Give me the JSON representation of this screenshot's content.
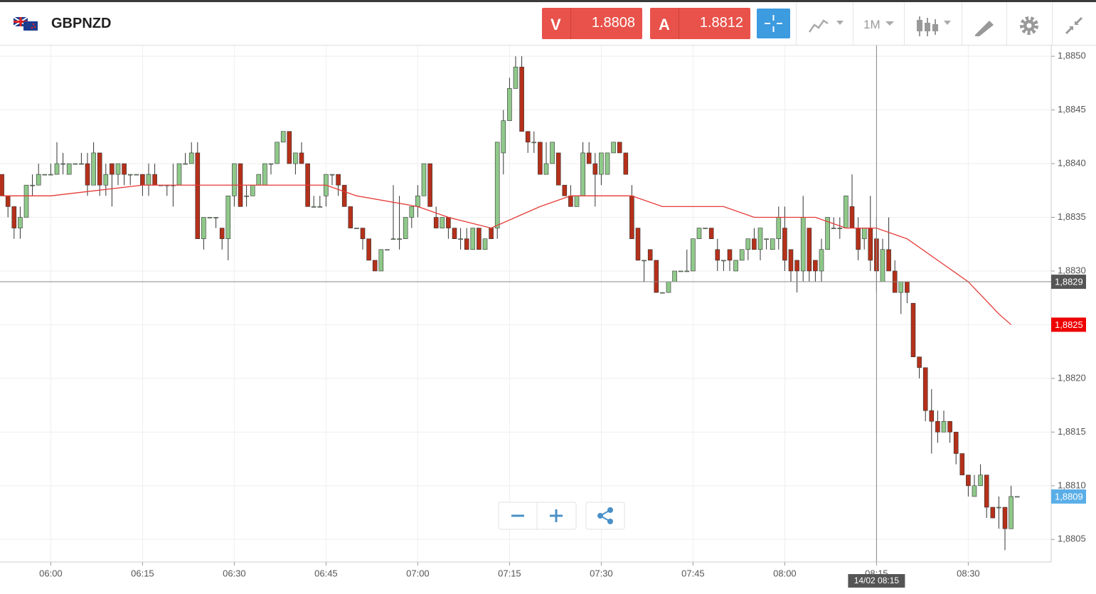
{
  "header": {
    "symbol": "GBPNZD",
    "sell_label": "V",
    "sell_price": "1.8808",
    "buy_label": "A",
    "buy_price": "1.8812",
    "timeframe": "1M"
  },
  "chart_data": {
    "type": "candlestick",
    "x": [
      "05:52",
      "05:53",
      "05:54",
      "05:55",
      "05:56",
      "05:57",
      "05:58",
      "05:59",
      "06:00",
      "06:01",
      "06:02",
      "06:03",
      "06:04",
      "06:05",
      "06:06",
      "06:07",
      "06:08",
      "06:09",
      "06:10",
      "06:11",
      "06:12",
      "06:13",
      "06:14",
      "06:15",
      "06:16",
      "06:17",
      "06:18",
      "06:19",
      "06:20",
      "06:21",
      "06:22",
      "06:23",
      "06:24",
      "06:25",
      "06:26",
      "06:27",
      "06:28",
      "06:29",
      "06:30",
      "06:31",
      "06:32",
      "06:33",
      "06:34",
      "06:35",
      "06:36",
      "06:37",
      "06:38",
      "06:39",
      "06:40",
      "06:41",
      "06:42",
      "06:43",
      "06:44",
      "06:45",
      "06:46",
      "06:47",
      "06:48",
      "06:49",
      "06:50",
      "06:51",
      "06:52",
      "06:53",
      "06:54",
      "06:55",
      "06:56",
      "06:57",
      "06:58",
      "06:59",
      "07:00",
      "07:01",
      "07:02",
      "07:03",
      "07:04",
      "07:05",
      "07:06",
      "07:07",
      "07:08",
      "07:09",
      "07:10",
      "07:11",
      "07:12",
      "07:13",
      "07:14",
      "07:15",
      "07:16",
      "07:17",
      "07:18",
      "07:19",
      "07:20",
      "07:21",
      "07:22",
      "07:23",
      "07:24",
      "07:25",
      "07:26",
      "07:27",
      "07:28",
      "07:29",
      "07:30",
      "07:31",
      "07:32",
      "07:33",
      "07:34",
      "07:35",
      "07:36",
      "07:37",
      "07:38",
      "07:39",
      "07:40",
      "07:41",
      "07:42",
      "07:43",
      "07:44",
      "07:45",
      "07:46",
      "07:47",
      "07:48",
      "07:49",
      "07:50",
      "07:51",
      "07:52",
      "07:53",
      "07:54",
      "07:55",
      "07:56",
      "07:57",
      "07:58",
      "07:59",
      "08:00",
      "08:01",
      "08:02",
      "08:03",
      "08:04",
      "08:05",
      "08:06",
      "08:07",
      "08:08",
      "08:09",
      "08:10",
      "08:11",
      "08:12",
      "08:13",
      "08:14",
      "08:15",
      "08:16",
      "08:17",
      "08:18",
      "08:19",
      "08:20",
      "08:21",
      "08:22",
      "08:23",
      "08:24",
      "08:25",
      "08:26",
      "08:27",
      "08:28",
      "08:29",
      "08:30",
      "08:31",
      "08:32",
      "08:33",
      "08:34",
      "08:35",
      "08:36",
      "08:37",
      "08:38"
    ],
    "ohlc": [
      [
        1.8839,
        1.8839,
        1.8837,
        1.8837
      ],
      [
        1.8837,
        1.8837,
        1.8835,
        1.8836
      ],
      [
        1.8836,
        1.8836,
        1.8833,
        1.8834
      ],
      [
        1.8834,
        1.8836,
        1.8833,
        1.8835
      ],
      [
        1.8835,
        1.8838,
        1.8835,
        1.8838
      ],
      [
        1.8838,
        1.8839,
        1.8837,
        1.8838
      ],
      [
        1.8838,
        1.884,
        1.8838,
        1.8839
      ],
      [
        1.8839,
        1.8839,
        1.8839,
        1.8839
      ],
      [
        1.8839,
        1.884,
        1.8839,
        1.8839
      ],
      [
        1.8839,
        1.8842,
        1.8839,
        1.884
      ],
      [
        1.884,
        1.8841,
        1.8839,
        1.884
      ],
      [
        1.8839,
        1.884,
        1.8839,
        1.884
      ],
      [
        1.884,
        1.884,
        1.884,
        1.884
      ],
      [
        1.884,
        1.8841,
        1.884,
        1.884
      ],
      [
        1.884,
        1.8841,
        1.8837,
        1.8838
      ],
      [
        1.8838,
        1.8842,
        1.8838,
        1.8841
      ],
      [
        1.8841,
        1.8841,
        1.8837,
        1.8838
      ],
      [
        1.8838,
        1.884,
        1.8837,
        1.8839
      ],
      [
        1.884,
        1.884,
        1.8836,
        1.8839
      ],
      [
        1.8839,
        1.884,
        1.8838,
        1.884
      ],
      [
        1.884,
        1.884,
        1.8838,
        1.8839
      ],
      [
        1.8839,
        1.8839,
        1.8838,
        1.8839
      ],
      [
        1.8839,
        1.8839,
        1.8839,
        1.8839
      ],
      [
        1.8839,
        1.8839,
        1.8837,
        1.8838
      ],
      [
        1.8838,
        1.884,
        1.8837,
        1.8839
      ],
      [
        1.8839,
        1.884,
        1.8838,
        1.8838
      ],
      [
        1.8838,
        1.8838,
        1.8838,
        1.8838
      ],
      [
        1.8838,
        1.8838,
        1.8837,
        1.8838
      ],
      [
        1.8838,
        1.884,
        1.8836,
        1.8838
      ],
      [
        1.8838,
        1.884,
        1.8838,
        1.884
      ],
      [
        1.884,
        1.8841,
        1.884,
        1.884
      ],
      [
        1.884,
        1.8842,
        1.884,
        1.8841
      ],
      [
        1.8841,
        1.8842,
        1.8833,
        1.8833
      ],
      [
        1.8833,
        1.8835,
        1.8832,
        1.8835
      ],
      [
        1.8835,
        1.8835,
        1.8835,
        1.8835
      ],
      [
        1.8835,
        1.8835,
        1.8834,
        1.8835
      ],
      [
        1.8834,
        1.8834,
        1.8832,
        1.8833
      ],
      [
        1.8833,
        1.8837,
        1.8831,
        1.8837
      ],
      [
        1.8837,
        1.884,
        1.8836,
        1.884
      ],
      [
        1.884,
        1.884,
        1.8836,
        1.8836
      ],
      [
        1.8837,
        1.8838,
        1.8836,
        1.8837
      ],
      [
        1.8837,
        1.8838,
        1.8837,
        1.8838
      ],
      [
        1.8838,
        1.8839,
        1.8838,
        1.8839
      ],
      [
        1.8838,
        1.884,
        1.8838,
        1.884
      ],
      [
        1.884,
        1.884,
        1.8839,
        1.884
      ],
      [
        1.884,
        1.8842,
        1.884,
        1.8842
      ],
      [
        1.8842,
        1.8843,
        1.8842,
        1.8843
      ],
      [
        1.8843,
        1.8843,
        1.884,
        1.884
      ],
      [
        1.884,
        1.8841,
        1.8839,
        1.8841
      ],
      [
        1.8841,
        1.8842,
        1.884,
        1.884
      ],
      [
        1.884,
        1.884,
        1.8836,
        1.8836
      ],
      [
        1.8836,
        1.8837,
        1.8836,
        1.8836
      ],
      [
        1.8836,
        1.8837,
        1.8836,
        1.8836
      ],
      [
        1.8837,
        1.8839,
        1.8836,
        1.8839
      ],
      [
        1.8839,
        1.8839,
        1.8838,
        1.8839
      ],
      [
        1.8839,
        1.8839,
        1.8837,
        1.8838
      ],
      [
        1.8838,
        1.8838,
        1.8836,
        1.8836
      ],
      [
        1.8836,
        1.8836,
        1.8834,
        1.8834
      ],
      [
        1.8834,
        1.8834,
        1.8834,
        1.8834
      ],
      [
        1.8834,
        1.8834,
        1.8832,
        1.8833
      ],
      [
        1.8833,
        1.8833,
        1.8831,
        1.8831
      ],
      [
        1.8831,
        1.8831,
        1.883,
        1.883
      ],
      [
        1.883,
        1.8832,
        1.883,
        1.8832
      ],
      [
        1.8832,
        1.8832,
        1.8832,
        1.8832
      ],
      [
        1.8833,
        1.8838,
        1.8833,
        1.8833
      ],
      [
        1.8833,
        1.8837,
        1.8832,
        1.8833
      ],
      [
        1.8833,
        1.8835,
        1.8833,
        1.8835
      ],
      [
        1.8835,
        1.8836,
        1.8834,
        1.8836
      ],
      [
        1.8836,
        1.8838,
        1.8835,
        1.8837
      ],
      [
        1.8837,
        1.884,
        1.8837,
        1.884
      ],
      [
        1.884,
        1.884,
        1.8836,
        1.8836
      ],
      [
        1.8835,
        1.8836,
        1.8834,
        1.8834
      ],
      [
        1.8834,
        1.8835,
        1.8834,
        1.8835
      ],
      [
        1.8835,
        1.8835,
        1.8833,
        1.8834
      ],
      [
        1.8834,
        1.8834,
        1.8833,
        1.8833
      ],
      [
        1.8833,
        1.8834,
        1.8832,
        1.8833
      ],
      [
        1.8833,
        1.8834,
        1.8832,
        1.8832
      ],
      [
        1.8832,
        1.8834,
        1.8832,
        1.8834
      ],
      [
        1.8834,
        1.8834,
        1.8832,
        1.8832
      ],
      [
        1.8832,
        1.8833,
        1.8832,
        1.8833
      ],
      [
        1.8834,
        1.8834,
        1.8833,
        1.8833
      ],
      [
        1.8834,
        1.8842,
        1.8833,
        1.8842
      ],
      [
        1.8841,
        1.8845,
        1.8839,
        1.8844
      ],
      [
        1.8844,
        1.8848,
        1.8844,
        1.8847
      ],
      [
        1.8847,
        1.885,
        1.8847,
        1.8849
      ],
      [
        1.8849,
        1.885,
        1.8843,
        1.8843
      ],
      [
        1.8843,
        1.8843,
        1.8841,
        1.8842
      ],
      [
        1.8842,
        1.8843,
        1.8841,
        1.8842
      ],
      [
        1.8842,
        1.8842,
        1.8839,
        1.8839
      ],
      [
        1.8839,
        1.8842,
        1.8839,
        1.884
      ],
      [
        1.884,
        1.8842,
        1.884,
        1.8842
      ],
      [
        1.8841,
        1.8841,
        1.8838,
        1.8838
      ],
      [
        1.8838,
        1.8838,
        1.8837,
        1.8837
      ],
      [
        1.8837,
        1.8838,
        1.8836,
        1.8836
      ],
      [
        1.8836,
        1.8837,
        1.8836,
        1.8837
      ],
      [
        1.8837,
        1.8842,
        1.8837,
        1.8841
      ],
      [
        1.8841,
        1.8842,
        1.884,
        1.884
      ],
      [
        1.884,
        1.8841,
        1.8836,
        1.8839
      ],
      [
        1.8839,
        1.8841,
        1.8838,
        1.8841
      ],
      [
        1.8839,
        1.8841,
        1.8839,
        1.8841
      ],
      [
        1.8841,
        1.8842,
        1.8841,
        1.8842
      ],
      [
        1.8842,
        1.8842,
        1.8841,
        1.8841
      ],
      [
        1.8841,
        1.8841,
        1.8839,
        1.8839
      ],
      [
        1.8837,
        1.8838,
        1.8833,
        1.8833
      ],
      [
        1.8834,
        1.8834,
        1.8831,
        1.8831
      ],
      [
        1.8831,
        1.8831,
        1.8829,
        1.8831
      ],
      [
        1.8832,
        1.8832,
        1.8831,
        1.8831
      ],
      [
        1.8831,
        1.8831,
        1.8828,
        1.8828
      ],
      [
        1.8828,
        1.8828,
        1.8828,
        1.8828
      ],
      [
        1.8828,
        1.8829,
        1.8828,
        1.8829
      ],
      [
        1.8829,
        1.883,
        1.8829,
        1.883
      ],
      [
        1.883,
        1.883,
        1.883,
        1.883
      ],
      [
        1.883,
        1.8832,
        1.883,
        1.883
      ],
      [
        1.883,
        1.8833,
        1.883,
        1.8833
      ],
      [
        1.8833,
        1.8834,
        1.8833,
        1.8834
      ],
      [
        1.8834,
        1.8834,
        1.8834,
        1.8834
      ],
      [
        1.8834,
        1.8834,
        1.8833,
        1.8833
      ],
      [
        1.8832,
        1.8833,
        1.883,
        1.8831
      ],
      [
        1.8831,
        1.8831,
        1.883,
        1.8831
      ],
      [
        1.8832,
        1.8832,
        1.883,
        1.8831
      ],
      [
        1.883,
        1.8831,
        1.883,
        1.8831
      ],
      [
        1.8831,
        1.8832,
        1.8831,
        1.8832
      ],
      [
        1.8832,
        1.8833,
        1.8831,
        1.8833
      ],
      [
        1.8833,
        1.8834,
        1.8832,
        1.8832
      ],
      [
        1.8832,
        1.8834,
        1.8831,
        1.8834
      ],
      [
        1.8833,
        1.8833,
        1.8832,
        1.8833
      ],
      [
        1.8832,
        1.8833,
        1.8832,
        1.8833
      ],
      [
        1.8833,
        1.8836,
        1.8832,
        1.8835
      ],
      [
        1.8834,
        1.8836,
        1.883,
        1.8831
      ],
      [
        1.8832,
        1.8832,
        1.8829,
        1.883
      ],
      [
        1.8831,
        1.8831,
        1.8828,
        1.883
      ],
      [
        1.883,
        1.8837,
        1.8829,
        1.8835
      ],
      [
        1.8834,
        1.8834,
        1.8829,
        1.883
      ],
      [
        1.8831,
        1.8831,
        1.8829,
        1.883
      ],
      [
        1.883,
        1.8833,
        1.8829,
        1.8832
      ],
      [
        1.8832,
        1.8835,
        1.8832,
        1.8835
      ],
      [
        1.8834,
        1.8835,
        1.8834,
        1.8834
      ],
      [
        1.8834,
        1.8835,
        1.8833,
        1.8834
      ],
      [
        1.8834,
        1.8837,
        1.8834,
        1.8837
      ],
      [
        1.8836,
        1.8839,
        1.8834,
        1.8834
      ],
      [
        1.8834,
        1.8835,
        1.8831,
        1.8832
      ],
      [
        1.8833,
        1.8834,
        1.8832,
        1.8834
      ],
      [
        1.8834,
        1.8837,
        1.883,
        1.8831
      ],
      [
        1.8833,
        1.8835,
        1.8828,
        1.883
      ],
      [
        1.8829,
        1.8833,
        1.8829,
        1.8832
      ],
      [
        1.8832,
        1.8835,
        1.883,
        1.883
      ],
      [
        1.883,
        1.8831,
        1.8828,
        1.8828
      ],
      [
        1.8828,
        1.8829,
        1.8826,
        1.8829
      ],
      [
        1.8829,
        1.8829,
        1.8827,
        1.8828
      ],
      [
        1.8827,
        1.8827,
        1.8822,
        1.8822
      ],
      [
        1.8822,
        1.8822,
        1.882,
        1.8821
      ],
      [
        1.8821,
        1.8821,
        1.8816,
        1.8817
      ],
      [
        1.8817,
        1.8819,
        1.8813,
        1.8816
      ],
      [
        1.8816,
        1.8817,
        1.8814,
        1.8815
      ],
      [
        1.8815,
        1.8817,
        1.8815,
        1.8816
      ],
      [
        1.8816,
        1.8816,
        1.8814,
        1.8815
      ],
      [
        1.8815,
        1.8815,
        1.8812,
        1.8813
      ],
      [
        1.8813,
        1.8813,
        1.8811,
        1.8811
      ],
      [
        1.8811,
        1.8811,
        1.8809,
        1.881
      ],
      [
        1.8809,
        1.8811,
        1.8809,
        1.881
      ],
      [
        1.881,
        1.8812,
        1.881,
        1.8811
      ],
      [
        1.8811,
        1.8811,
        1.8807,
        1.8808
      ],
      [
        1.8808,
        1.8808,
        1.8807,
        1.8807
      ],
      [
        1.8808,
        1.8809,
        1.8806,
        1.8808
      ],
      [
        1.8808,
        1.8808,
        1.8804,
        1.8806
      ],
      [
        1.8806,
        1.881,
        1.8806,
        1.8809
      ],
      [
        1.8809,
        1.8809,
        1.8809,
        1.8809
      ]
    ],
    "colors": {
      "up": "#8fc98a",
      "down": "#b5301a",
      "outline": "#333333"
    },
    "ma": {
      "color": "#e53935",
      "x": [
        "05:52",
        "06:00",
        "06:15",
        "06:30",
        "06:45",
        "06:50",
        "07:00",
        "07:05",
        "07:12",
        "07:20",
        "07:25",
        "07:35",
        "07:40",
        "07:50",
        "07:55",
        "08:05",
        "08:10",
        "08:15",
        "08:20",
        "08:25",
        "08:30",
        "08:35",
        "08:37"
      ],
      "values": [
        1.8837,
        1.8837,
        1.8838,
        1.8838,
        1.8838,
        1.8837,
        1.8836,
        1.8835,
        1.8834,
        1.8836,
        1.8837,
        1.8837,
        1.8836,
        1.8836,
        1.8835,
        1.8835,
        1.8834,
        1.8834,
        1.8833,
        1.8831,
        1.8829,
        1.8826,
        1.8825
      ]
    },
    "ylim": [
      1.88029,
      1.8851
    ],
    "yticks": [
      {
        "value": 1.8805,
        "label": "1,8805"
      },
      {
        "value": 1.881,
        "label": "1,8810"
      },
      {
        "value": 1.8815,
        "label": "1,8815"
      },
      {
        "value": 1.882,
        "label": "1,8820"
      },
      {
        "value": 1.8825,
        "label": "1,8825"
      },
      {
        "value": 1.883,
        "label": "1,8830"
      },
      {
        "value": 1.8835,
        "label": "1,8835"
      },
      {
        "value": 1.884,
        "label": "1,8840"
      },
      {
        "value": 1.8845,
        "label": "1,8845"
      },
      {
        "value": 1.885,
        "label": "1,8850"
      }
    ],
    "xticks": [
      "06:00",
      "06:15",
      "06:30",
      "06:45",
      "07:00",
      "07:15",
      "07:30",
      "07:45",
      "08:00",
      "08:15",
      "08:30"
    ],
    "grid": true,
    "crosshair": {
      "x": "08:15",
      "x_label": "14/02 08:15",
      "y": {
        "value": 1.8829,
        "label": "1,8829"
      }
    },
    "ma_last": {
      "value": 1.8825,
      "label": "1,8825"
    },
    "last_price": {
      "value": 1.8809,
      "label": "1,8809"
    }
  }
}
